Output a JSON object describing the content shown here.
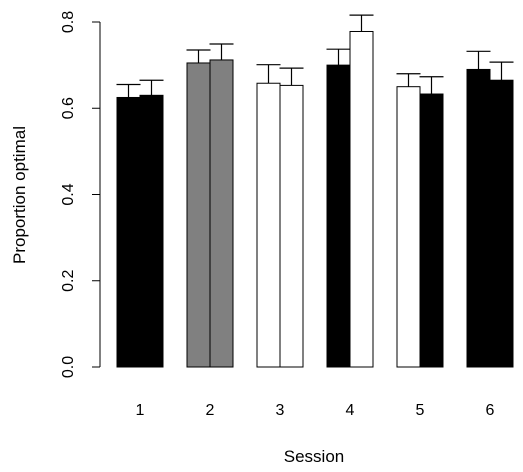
{
  "chart_data": {
    "type": "bar",
    "xlabel": "Session",
    "ylabel": "Proportion optimal",
    "ylim": [
      0,
      0.8
    ],
    "yticks": [
      "0.0",
      "0.2",
      "0.4",
      "0.6",
      "0.8"
    ],
    "categories": [
      "1",
      "2",
      "3",
      "4",
      "5",
      "6"
    ],
    "grid": false,
    "legend": "none",
    "bars_per_category": 2,
    "bars": [
      {
        "category": "1",
        "value": 0.625,
        "error": 0.03,
        "fill": "#000000"
      },
      {
        "category": "1",
        "value": 0.63,
        "error": 0.035,
        "fill": "#000000"
      },
      {
        "category": "2",
        "value": 0.705,
        "error": 0.03,
        "fill": "#808080"
      },
      {
        "category": "2",
        "value": 0.712,
        "error": 0.037,
        "fill": "#808080"
      },
      {
        "category": "3",
        "value": 0.658,
        "error": 0.043,
        "fill": "#ffffff"
      },
      {
        "category": "3",
        "value": 0.653,
        "error": 0.04,
        "fill": "#ffffff"
      },
      {
        "category": "4",
        "value": 0.7,
        "error": 0.037,
        "fill": "#000000"
      },
      {
        "category": "4",
        "value": 0.778,
        "error": 0.038,
        "fill": "#ffffff"
      },
      {
        "category": "5",
        "value": 0.65,
        "error": 0.03,
        "fill": "#ffffff"
      },
      {
        "category": "5",
        "value": 0.633,
        "error": 0.04,
        "fill": "#000000"
      },
      {
        "category": "6",
        "value": 0.69,
        "error": 0.042,
        "fill": "#000000"
      },
      {
        "category": "6",
        "value": 0.665,
        "error": 0.042,
        "fill": "#000000"
      }
    ]
  }
}
